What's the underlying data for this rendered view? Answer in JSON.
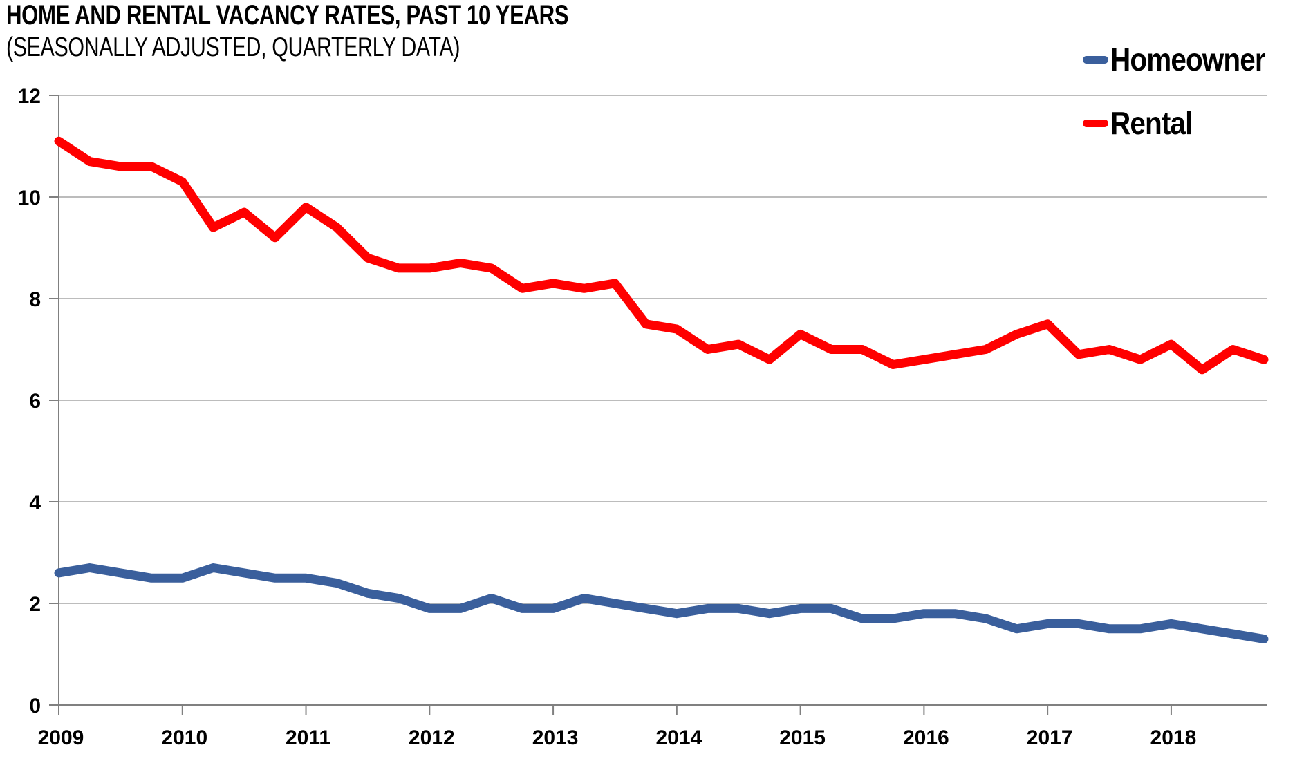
{
  "header": {
    "title": "HOME AND RENTAL VACANCY RATES, PAST 10 YEARS",
    "subtitle": "(SEASONALLY ADJUSTED, QUARTERLY DATA)"
  },
  "legend": [
    {
      "label": "Homeowner",
      "color": "#3A5F9C"
    },
    {
      "label": "Rental",
      "color": "#FF0000"
    }
  ],
  "chart_data": {
    "type": "line",
    "title": "HOME AND RENTAL VACANCY RATES, PAST 10 YEARS",
    "subtitle": "(SEASONALLY ADJUSTED, QUARTERLY DATA)",
    "x_unit": "quarter",
    "x_tick_labels": [
      "2009",
      "2010",
      "2011",
      "2012",
      "2013",
      "2014",
      "2015",
      "2016",
      "2017",
      "2018"
    ],
    "quarters_per_year": 4,
    "ylim": [
      0,
      12
    ],
    "y_ticks": [
      0,
      2,
      4,
      6,
      8,
      10,
      12
    ],
    "grid": true,
    "legend_position": "top-right",
    "grid_color": "#A6A6A6",
    "axis_color": "#808080",
    "series": [
      {
        "name": "Homeowner",
        "color": "#3A5F9C",
        "values": [
          2.6,
          2.7,
          2.6,
          2.5,
          2.5,
          2.7,
          2.6,
          2.5,
          2.5,
          2.4,
          2.2,
          2.1,
          1.9,
          1.9,
          2.1,
          1.9,
          1.9,
          2.1,
          2.0,
          1.9,
          1.8,
          1.9,
          1.9,
          1.8,
          1.9,
          1.9,
          1.7,
          1.7,
          1.8,
          1.8,
          1.7,
          1.5,
          1.6,
          1.6,
          1.5,
          1.5,
          1.6,
          1.5,
          1.4,
          1.3
        ]
      },
      {
        "name": "Rental",
        "color": "#FF0000",
        "values": [
          11.1,
          10.7,
          10.6,
          10.6,
          10.3,
          9.4,
          9.7,
          9.2,
          9.8,
          9.4,
          8.8,
          8.6,
          8.6,
          8.7,
          8.6,
          8.2,
          8.3,
          8.2,
          8.3,
          7.5,
          7.4,
          7.0,
          7.1,
          6.8,
          7.3,
          7.0,
          7.0,
          6.7,
          6.8,
          6.9,
          7.0,
          7.3,
          7.5,
          6.9,
          7.0,
          6.8,
          7.1,
          6.6,
          7.0,
          6.8
        ]
      }
    ]
  }
}
